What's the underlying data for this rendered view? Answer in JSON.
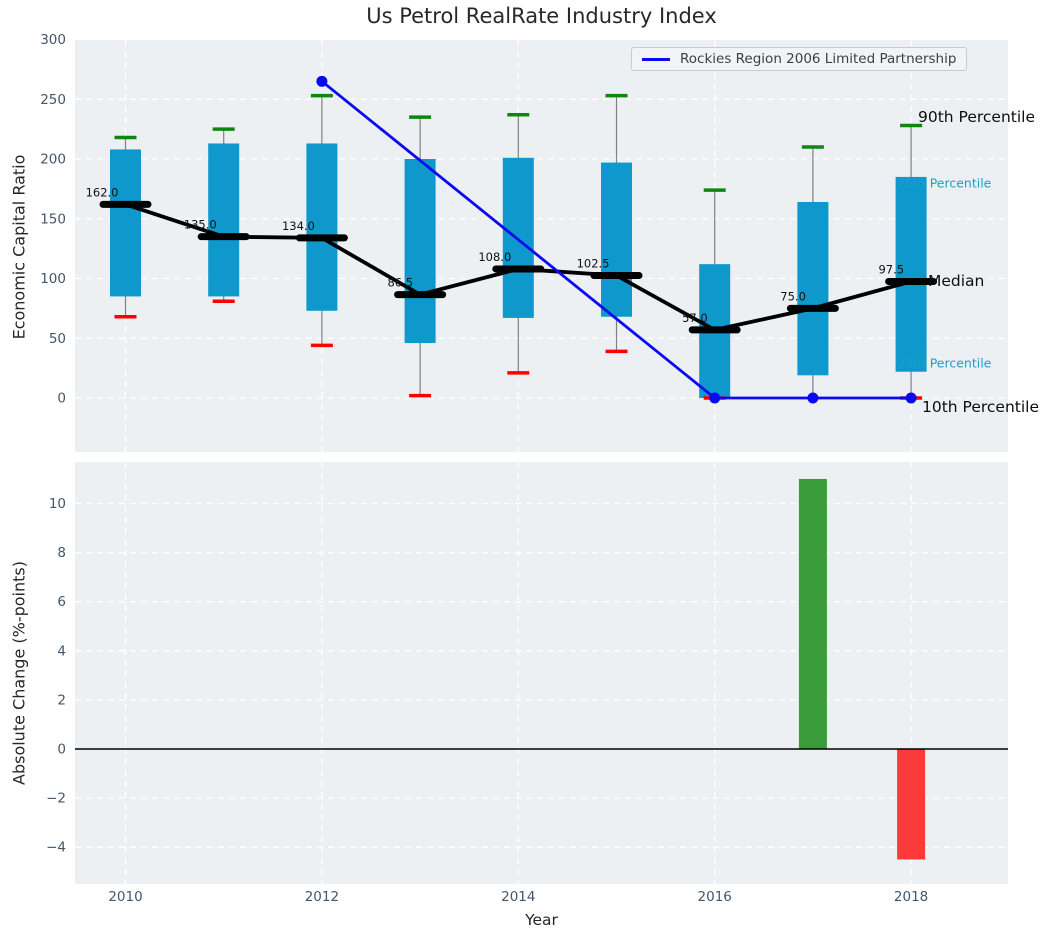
{
  "chart_data": [
    {
      "type": "boxplot",
      "title": "Us Petrol RealRate Industry Index",
      "ylabel": "Economic Capital Ratio",
      "yticks": [
        0,
        50,
        100,
        150,
        200,
        250,
        300
      ],
      "ylim": [
        -45,
        300
      ],
      "grid": true,
      "legend_position": "upper right",
      "years": [
        2010,
        2011,
        2012,
        2013,
        2014,
        2015,
        2016,
        2017,
        2018
      ],
      "series": [
        {
          "name": "90th Percentile",
          "values": [
            218,
            225,
            253,
            235,
            237,
            253,
            174,
            210,
            228
          ]
        },
        {
          "name": "75th Percentile",
          "values": [
            208,
            213,
            213,
            200,
            201,
            197,
            112,
            164,
            185
          ]
        },
        {
          "name": "Median",
          "values": [
            162,
            135,
            134,
            86.5,
            108,
            102.5,
            57,
            75,
            97.5
          ]
        },
        {
          "name": "25th Percentile",
          "values": [
            85,
            85,
            73,
            46,
            67,
            68,
            0,
            19,
            22
          ]
        },
        {
          "name": "10th Percentile",
          "values": [
            68,
            81,
            44,
            2,
            21,
            39,
            0,
            0,
            0
          ]
        }
      ],
      "p10_cap_visible": [
        true,
        true,
        true,
        true,
        true,
        true,
        true,
        false,
        true
      ],
      "median_labels": [
        "162.0",
        "135.0",
        "134.0",
        "86.5",
        "108.0",
        "102.5",
        "57.0",
        "75.0",
        "97.5"
      ],
      "right_labels": {
        "p90": "90th Percentile",
        "p75": "75th Percentile",
        "median": "Median",
        "p25": "25th Percentile",
        "p10": "10th Percentile"
      },
      "overlay_line": {
        "name": "Rockies Region 2006 Limited Partnership",
        "x": [
          2012,
          2016,
          2017,
          2018
        ],
        "y": [
          265,
          0,
          0,
          0
        ],
        "color": "#0a0af0"
      },
      "colors": {
        "box": "#0e98cb",
        "p90_cap": "#0f870f",
        "p10_cap": "#ff0000",
        "median": "#000000",
        "whisker": "#808080",
        "background": "#edf0f2",
        "tick_text": "#44566b"
      }
    },
    {
      "type": "bar",
      "ylabel": "Absolute Change (%-points)",
      "xlabel": "Year",
      "yticks": [
        -4,
        -2,
        0,
        2,
        4,
        6,
        8,
        10
      ],
      "ylim": [
        -5.5,
        11.7
      ],
      "xticks": [
        2010,
        2012,
        2014,
        2016,
        2018
      ],
      "grid": true,
      "zero_line": true,
      "x": [
        2017,
        2018
      ],
      "values": [
        11.0,
        -4.5
      ],
      "bar_colors": [
        "#3b9c3b",
        "#fb3b3b"
      ]
    }
  ]
}
